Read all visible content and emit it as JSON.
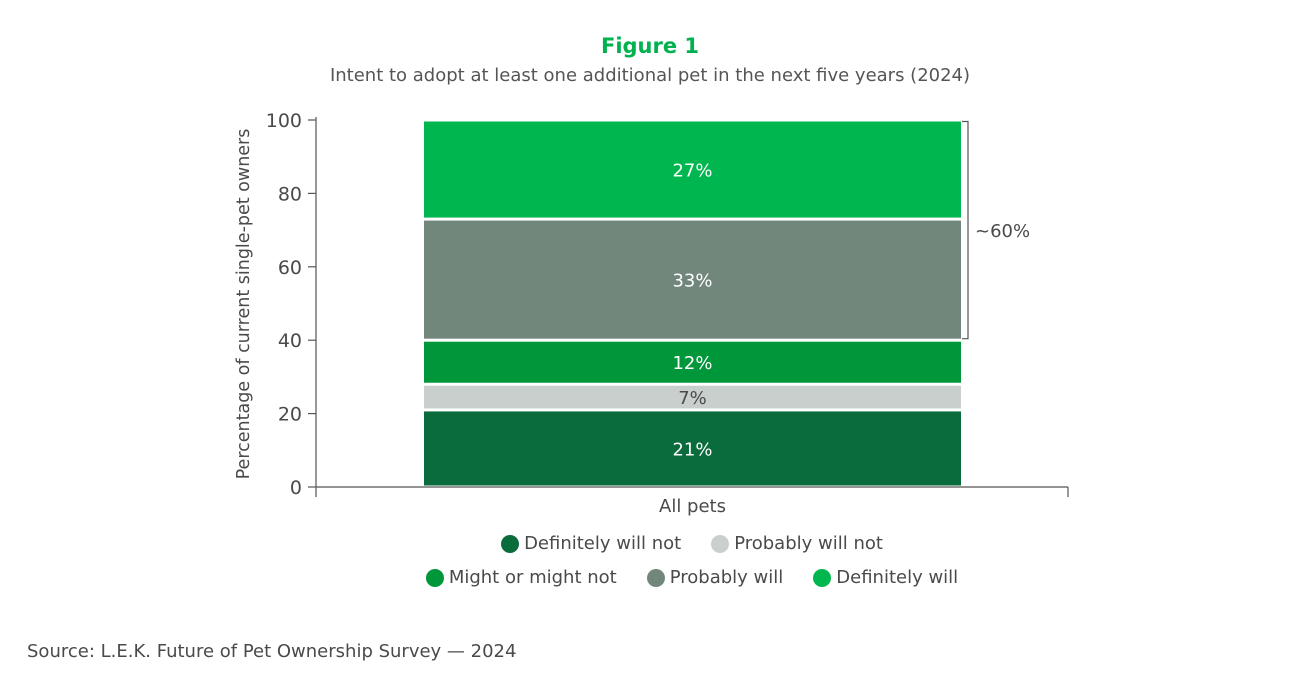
{
  "chart_data": {
    "type": "bar",
    "stacked": true,
    "title": "Figure 1",
    "subtitle": "Intent to adopt at least one additional pet in the next five years (2024)",
    "ylabel": "Percentage of current single-pet owners",
    "xlabel": "",
    "ylim": [
      0,
      100
    ],
    "yticks": [
      "0",
      "20",
      "40",
      "60",
      "80",
      "100"
    ],
    "categories": [
      "All pets"
    ],
    "series": [
      {
        "name": "Definitely will not",
        "values": [
          21
        ],
        "label": "21%",
        "color": "#0a6b3c",
        "label_color": "#ffffff"
      },
      {
        "name": "Probably will not",
        "values": [
          7
        ],
        "label": "7%",
        "color": "#c8cfcd",
        "label_color": "#4a4a4a"
      },
      {
        "name": "Might or might not",
        "values": [
          12
        ],
        "label": "12%",
        "color": "#00963a",
        "label_color": "#ffffff"
      },
      {
        "name": "Probably will",
        "values": [
          33
        ],
        "label": "33%",
        "color": "#72877c",
        "label_color": "#ffffff"
      },
      {
        "name": "Definitely will",
        "values": [
          27
        ],
        "label": "27%",
        "color": "#00b74f",
        "label_color": "#ffffff"
      }
    ],
    "annotation": {
      "text": "~60%",
      "spans_series": [
        "Probably will",
        "Definitely will"
      ]
    },
    "legend_placement": "bottom",
    "grid": false
  },
  "source": "Source: L.E.K. Future of Pet Ownership Survey — 2024"
}
